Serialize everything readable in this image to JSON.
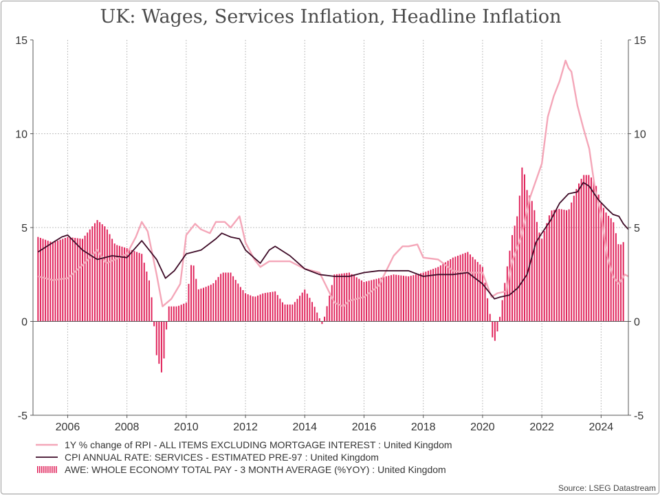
{
  "chart_data": {
    "type": "line",
    "title": "UK: Wages, Services Inflation, Headline Inflation",
    "source": "Source: LSEG Datastream",
    "x_domain": [
      2004.83,
      2024.92
    ],
    "ylim": [
      -5,
      15
    ],
    "y_ticks": [
      -5,
      0,
      5,
      10,
      15
    ],
    "y_tick_labels": [
      "-5",
      "0",
      "5",
      "10",
      "15"
    ],
    "x_ticks": [
      2006,
      2008,
      2010,
      2012,
      2014,
      2016,
      2018,
      2020,
      2022,
      2024
    ],
    "x_tick_labels": [
      "2006",
      "2008",
      "2010",
      "2012",
      "2014",
      "2016",
      "2018",
      "2020",
      "2022",
      "2024"
    ],
    "grid": true,
    "legend_position": "bottom",
    "colors": {
      "rpix": "#f4a6b8",
      "services": "#3d0a26",
      "awe": "#e0225a",
      "grid": "#bfbfbf",
      "axis": "#555555"
    },
    "series": [
      {
        "name": "1Y % change of RPI - ALL ITEMS EXCLUDING MORTGAGE INTEREST : United Kingdom",
        "kind": "line",
        "x": [
          2005.0,
          2005.5,
          2006.0,
          2006.5,
          2007.0,
          2007.3,
          2007.6,
          2008.0,
          2008.3,
          2008.5,
          2008.7,
          2009.0,
          2009.2,
          2009.5,
          2009.8,
          2010.0,
          2010.3,
          2010.5,
          2010.8,
          2011.0,
          2011.3,
          2011.5,
          2011.8,
          2012.0,
          2012.3,
          2012.5,
          2012.8,
          2013.0,
          2013.5,
          2014.0,
          2014.5,
          2015.0,
          2015.3,
          2015.5,
          2016.0,
          2016.5,
          2017.0,
          2017.3,
          2017.5,
          2017.8,
          2018.0,
          2018.5,
          2019.0,
          2019.5,
          2020.0,
          2020.3,
          2020.5,
          2020.8,
          2021.0,
          2021.3,
          2021.6,
          2021.8,
          2022.0,
          2022.2,
          2022.4,
          2022.6,
          2022.8,
          2022.9,
          2023.0,
          2023.2,
          2023.4,
          2023.6,
          2023.8,
          2024.0,
          2024.2,
          2024.4,
          2024.6,
          2024.8,
          2024.92
        ],
        "values": [
          2.4,
          2.2,
          2.3,
          3.0,
          3.8,
          3.1,
          3.3,
          3.6,
          4.5,
          5.3,
          4.8,
          2.5,
          0.8,
          1.2,
          2.0,
          4.6,
          5.2,
          4.9,
          4.7,
          5.3,
          5.3,
          5.0,
          5.6,
          4.2,
          3.3,
          2.9,
          3.2,
          3.2,
          3.2,
          2.8,
          2.6,
          1.0,
          0.8,
          1.1,
          1.3,
          1.9,
          3.5,
          4.0,
          4.0,
          4.1,
          3.4,
          3.3,
          2.7,
          2.6,
          2.6,
          1.3,
          1.5,
          1.6,
          3.2,
          4.5,
          6.6,
          7.5,
          8.4,
          10.9,
          12.0,
          12.8,
          13.9,
          13.5,
          13.3,
          11.5,
          10.3,
          9.2,
          7.0,
          5.7,
          3.5,
          2.4,
          2.0,
          2.5,
          2.4
        ]
      },
      {
        "name": "CPI ANNUAL RATE: SERVICES - ESTIMATED PRE-97 : United Kingdom",
        "kind": "line",
        "x": [
          2005.0,
          2005.5,
          2005.8,
          2006.0,
          2006.5,
          2007.0,
          2007.5,
          2008.0,
          2008.5,
          2009.0,
          2009.3,
          2009.6,
          2010.0,
          2010.5,
          2011.0,
          2011.2,
          2011.5,
          2011.8,
          2012.0,
          2012.5,
          2012.8,
          2013.0,
          2013.5,
          2014.0,
          2014.5,
          2015.0,
          2015.5,
          2016.0,
          2016.5,
          2017.0,
          2017.5,
          2018.0,
          2018.5,
          2019.0,
          2019.5,
          2020.0,
          2020.4,
          2020.6,
          2020.9,
          2021.2,
          2021.5,
          2021.8,
          2022.0,
          2022.3,
          2022.6,
          2022.9,
          2023.2,
          2023.4,
          2023.6,
          2023.9,
          2024.2,
          2024.4,
          2024.6,
          2024.75,
          2024.92
        ],
        "values": [
          3.7,
          4.2,
          4.5,
          4.6,
          3.8,
          3.3,
          3.5,
          3.4,
          4.3,
          3.3,
          2.3,
          2.7,
          3.6,
          3.8,
          4.4,
          4.7,
          4.5,
          4.4,
          3.8,
          3.1,
          3.8,
          4.0,
          3.5,
          2.8,
          2.5,
          2.4,
          2.4,
          2.6,
          2.7,
          2.7,
          2.7,
          2.4,
          2.5,
          2.5,
          2.6,
          2.0,
          1.2,
          1.3,
          1.4,
          1.8,
          2.5,
          4.2,
          4.7,
          5.4,
          6.3,
          6.8,
          6.9,
          7.4,
          7.2,
          6.5,
          6.0,
          5.7,
          5.6,
          5.2,
          4.9
        ]
      },
      {
        "name": "AWE: WHOLE ECONOMY TOTAL PAY - 3 MONTH AVERAGE (%YOY) : United Kingdom",
        "kind": "bar",
        "x": [
          2005.0,
          2005.5,
          2006.0,
          2006.5,
          2007.0,
          2007.3,
          2007.6,
          2008.0,
          2008.5,
          2008.8,
          2009.0,
          2009.2,
          2009.4,
          2009.7,
          2010.0,
          2010.2,
          2010.4,
          2010.6,
          2010.9,
          2011.2,
          2011.5,
          2011.8,
          2012.0,
          2012.3,
          2012.6,
          2013.0,
          2013.3,
          2013.6,
          2014.0,
          2014.3,
          2014.6,
          2015.0,
          2015.5,
          2016.0,
          2016.5,
          2017.0,
          2017.5,
          2018.0,
          2018.5,
          2019.0,
          2019.5,
          2020.0,
          2020.25,
          2020.35,
          2020.45,
          2020.6,
          2020.8,
          2021.0,
          2021.2,
          2021.35,
          2021.5,
          2021.7,
          2021.9,
          2022.0,
          2022.3,
          2022.6,
          2022.9,
          2023.2,
          2023.4,
          2023.6,
          2023.8,
          2024.0,
          2024.2,
          2024.4,
          2024.6,
          2024.8
        ],
        "values": [
          4.5,
          4.2,
          4.5,
          4.4,
          5.4,
          5.0,
          4.1,
          3.9,
          3.6,
          1.9,
          -1.8,
          -2.9,
          0.8,
          0.8,
          1.0,
          3.4,
          1.7,
          1.8,
          2.0,
          2.6,
          2.6,
          1.9,
          1.5,
          1.3,
          1.5,
          1.6,
          0.9,
          0.9,
          1.7,
          0.9,
          -0.2,
          2.5,
          2.6,
          2.1,
          2.3,
          2.5,
          2.4,
          2.6,
          2.9,
          3.4,
          3.7,
          2.9,
          0.4,
          -1.1,
          -1.0,
          0.4,
          2.6,
          4.6,
          5.8,
          8.5,
          7.0,
          6.3,
          4.8,
          4.4,
          5.9,
          6.0,
          5.9,
          7.2,
          7.8,
          7.8,
          7.4,
          6.3,
          5.7,
          5.4,
          4.0,
          4.3
        ]
      }
    ]
  }
}
